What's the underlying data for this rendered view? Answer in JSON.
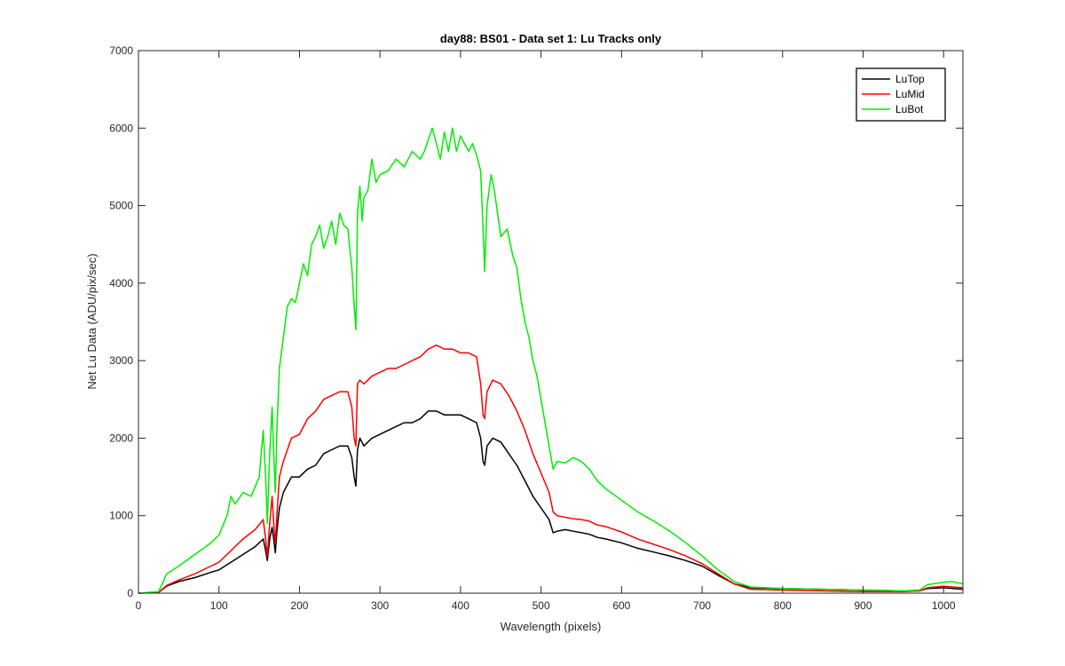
{
  "chart_data": {
    "type": "line",
    "title": "day88: BS01 - Data set 1: Lu Tracks only",
    "xlabel": "Wavelength (pixels)",
    "ylabel": "Net Lu Data (ADU/pix/sec)",
    "xlim": [
      0,
      1024
    ],
    "ylim": [
      0,
      7000
    ],
    "xticks": [
      0,
      100,
      200,
      300,
      400,
      500,
      600,
      700,
      800,
      900,
      1000
    ],
    "yticks": [
      0,
      1000,
      2000,
      3000,
      4000,
      5000,
      6000,
      7000
    ],
    "grid": false,
    "legend_position": "top-right",
    "series": [
      {
        "name": "LuTop",
        "color": "#000000",
        "points": [
          [
            0,
            0
          ],
          [
            25,
            10
          ],
          [
            35,
            90
          ],
          [
            50,
            150
          ],
          [
            70,
            200
          ],
          [
            90,
            270
          ],
          [
            100,
            300
          ],
          [
            115,
            400
          ],
          [
            130,
            500
          ],
          [
            145,
            600
          ],
          [
            155,
            700
          ],
          [
            158,
            550
          ],
          [
            160,
            420
          ],
          [
            163,
            700
          ],
          [
            166,
            850
          ],
          [
            168,
            700
          ],
          [
            170,
            520
          ],
          [
            172,
            800
          ],
          [
            175,
            1100
          ],
          [
            180,
            1300
          ],
          [
            190,
            1500
          ],
          [
            200,
            1500
          ],
          [
            210,
            1600
          ],
          [
            220,
            1650
          ],
          [
            230,
            1800
          ],
          [
            240,
            1850
          ],
          [
            250,
            1900
          ],
          [
            260,
            1900
          ],
          [
            265,
            1750
          ],
          [
            268,
            1500
          ],
          [
            270,
            1380
          ],
          [
            272,
            1850
          ],
          [
            275,
            2000
          ],
          [
            280,
            1900
          ],
          [
            290,
            2000
          ],
          [
            300,
            2050
          ],
          [
            310,
            2100
          ],
          [
            320,
            2150
          ],
          [
            330,
            2200
          ],
          [
            340,
            2200
          ],
          [
            350,
            2250
          ],
          [
            360,
            2350
          ],
          [
            370,
            2350
          ],
          [
            380,
            2300
          ],
          [
            390,
            2300
          ],
          [
            400,
            2300
          ],
          [
            410,
            2250
          ],
          [
            420,
            2200
          ],
          [
            425,
            2000
          ],
          [
            428,
            1700
          ],
          [
            430,
            1650
          ],
          [
            433,
            1900
          ],
          [
            440,
            2000
          ],
          [
            450,
            1950
          ],
          [
            460,
            1800
          ],
          [
            470,
            1650
          ],
          [
            480,
            1450
          ],
          [
            490,
            1250
          ],
          [
            500,
            1100
          ],
          [
            510,
            950
          ],
          [
            515,
            780
          ],
          [
            520,
            800
          ],
          [
            530,
            820
          ],
          [
            540,
            800
          ],
          [
            550,
            780
          ],
          [
            560,
            760
          ],
          [
            570,
            720
          ],
          [
            580,
            700
          ],
          [
            600,
            650
          ],
          [
            620,
            580
          ],
          [
            640,
            530
          ],
          [
            660,
            480
          ],
          [
            680,
            420
          ],
          [
            700,
            350
          ],
          [
            720,
            230
          ],
          [
            740,
            120
          ],
          [
            760,
            70
          ],
          [
            800,
            60
          ],
          [
            850,
            50
          ],
          [
            900,
            40
          ],
          [
            950,
            30
          ],
          [
            970,
            30
          ],
          [
            980,
            60
          ],
          [
            1000,
            70
          ],
          [
            1024,
            50
          ]
        ]
      },
      {
        "name": "LuMid",
        "color": "#ff0000",
        "points": [
          [
            0,
            0
          ],
          [
            25,
            10
          ],
          [
            35,
            100
          ],
          [
            50,
            170
          ],
          [
            70,
            250
          ],
          [
            90,
            350
          ],
          [
            100,
            400
          ],
          [
            115,
            550
          ],
          [
            130,
            700
          ],
          [
            145,
            820
          ],
          [
            155,
            950
          ],
          [
            158,
            700
          ],
          [
            160,
            480
          ],
          [
            163,
            900
          ],
          [
            166,
            1250
          ],
          [
            168,
            900
          ],
          [
            170,
            650
          ],
          [
            172,
            1000
          ],
          [
            175,
            1500
          ],
          [
            180,
            1700
          ],
          [
            190,
            2000
          ],
          [
            200,
            2050
          ],
          [
            210,
            2250
          ],
          [
            220,
            2350
          ],
          [
            230,
            2500
          ],
          [
            240,
            2550
          ],
          [
            250,
            2600
          ],
          [
            260,
            2600
          ],
          [
            265,
            2400
          ],
          [
            268,
            2000
          ],
          [
            270,
            1900
          ],
          [
            272,
            2700
          ],
          [
            275,
            2750
          ],
          [
            280,
            2700
          ],
          [
            290,
            2800
          ],
          [
            300,
            2850
          ],
          [
            310,
            2900
          ],
          [
            320,
            2900
          ],
          [
            330,
            2950
          ],
          [
            340,
            3000
          ],
          [
            350,
            3050
          ],
          [
            360,
            3150
          ],
          [
            370,
            3200
          ],
          [
            380,
            3150
          ],
          [
            390,
            3150
          ],
          [
            400,
            3100
          ],
          [
            410,
            3100
          ],
          [
            420,
            3050
          ],
          [
            425,
            2700
          ],
          [
            428,
            2300
          ],
          [
            430,
            2250
          ],
          [
            433,
            2600
          ],
          [
            440,
            2750
          ],
          [
            450,
            2700
          ],
          [
            460,
            2550
          ],
          [
            470,
            2350
          ],
          [
            480,
            2100
          ],
          [
            490,
            1800
          ],
          [
            500,
            1550
          ],
          [
            510,
            1300
          ],
          [
            515,
            1050
          ],
          [
            520,
            1000
          ],
          [
            530,
            980
          ],
          [
            540,
            960
          ],
          [
            550,
            950
          ],
          [
            560,
            930
          ],
          [
            570,
            880
          ],
          [
            580,
            860
          ],
          [
            600,
            790
          ],
          [
            620,
            700
          ],
          [
            640,
            630
          ],
          [
            660,
            560
          ],
          [
            680,
            480
          ],
          [
            700,
            380
          ],
          [
            720,
            250
          ],
          [
            740,
            120
          ],
          [
            760,
            50
          ],
          [
            800,
            40
          ],
          [
            850,
            30
          ],
          [
            900,
            20
          ],
          [
            950,
            20
          ],
          [
            970,
            30
          ],
          [
            980,
            70
          ],
          [
            1000,
            90
          ],
          [
            1024,
            70
          ]
        ]
      },
      {
        "name": "LuBot",
        "color": "#00ee00",
        "points": [
          [
            0,
            0
          ],
          [
            25,
            20
          ],
          [
            35,
            250
          ],
          [
            50,
            350
          ],
          [
            70,
            500
          ],
          [
            90,
            650
          ],
          [
            100,
            750
          ],
          [
            110,
            1000
          ],
          [
            115,
            1250
          ],
          [
            120,
            1150
          ],
          [
            130,
            1300
          ],
          [
            140,
            1250
          ],
          [
            150,
            1500
          ],
          [
            155,
            2100
          ],
          [
            158,
            1500
          ],
          [
            160,
            900
          ],
          [
            163,
            1800
          ],
          [
            166,
            2400
          ],
          [
            168,
            1800
          ],
          [
            170,
            1300
          ],
          [
            172,
            2100
          ],
          [
            175,
            2900
          ],
          [
            180,
            3300
          ],
          [
            185,
            3700
          ],
          [
            190,
            3800
          ],
          [
            195,
            3750
          ],
          [
            200,
            4000
          ],
          [
            205,
            4250
          ],
          [
            210,
            4100
          ],
          [
            215,
            4500
          ],
          [
            220,
            4600
          ],
          [
            225,
            4750
          ],
          [
            230,
            4450
          ],
          [
            235,
            4600
          ],
          [
            240,
            4800
          ],
          [
            245,
            4500
          ],
          [
            250,
            4900
          ],
          [
            255,
            4750
          ],
          [
            260,
            4700
          ],
          [
            265,
            4200
          ],
          [
            268,
            3700
          ],
          [
            270,
            3400
          ],
          [
            272,
            4900
          ],
          [
            275,
            5250
          ],
          [
            278,
            4800
          ],
          [
            280,
            5100
          ],
          [
            285,
            5200
          ],
          [
            290,
            5600
          ],
          [
            295,
            5300
          ],
          [
            300,
            5400
          ],
          [
            310,
            5450
          ],
          [
            320,
            5600
          ],
          [
            330,
            5500
          ],
          [
            340,
            5700
          ],
          [
            350,
            5600
          ],
          [
            355,
            5700
          ],
          [
            360,
            5850
          ],
          [
            365,
            6000
          ],
          [
            370,
            5800
          ],
          [
            375,
            5600
          ],
          [
            380,
            5950
          ],
          [
            385,
            5700
          ],
          [
            390,
            6000
          ],
          [
            395,
            5700
          ],
          [
            400,
            5900
          ],
          [
            410,
            5700
          ],
          [
            415,
            5800
          ],
          [
            420,
            5650
          ],
          [
            425,
            5450
          ],
          [
            428,
            4700
          ],
          [
            430,
            4150
          ],
          [
            433,
            5000
          ],
          [
            438,
            5400
          ],
          [
            442,
            5200
          ],
          [
            450,
            4600
          ],
          [
            458,
            4700
          ],
          [
            465,
            4350
          ],
          [
            470,
            4200
          ],
          [
            475,
            3800
          ],
          [
            480,
            3500
          ],
          [
            485,
            3300
          ],
          [
            490,
            3000
          ],
          [
            495,
            2800
          ],
          [
            500,
            2500
          ],
          [
            505,
            2200
          ],
          [
            510,
            1900
          ],
          [
            515,
            1600
          ],
          [
            520,
            1700
          ],
          [
            530,
            1680
          ],
          [
            540,
            1750
          ],
          [
            550,
            1700
          ],
          [
            560,
            1600
          ],
          [
            570,
            1450
          ],
          [
            580,
            1350
          ],
          [
            600,
            1200
          ],
          [
            620,
            1050
          ],
          [
            640,
            930
          ],
          [
            660,
            800
          ],
          [
            680,
            650
          ],
          [
            700,
            480
          ],
          [
            720,
            300
          ],
          [
            740,
            150
          ],
          [
            760,
            80
          ],
          [
            800,
            60
          ],
          [
            850,
            50
          ],
          [
            900,
            40
          ],
          [
            950,
            30
          ],
          [
            970,
            40
          ],
          [
            980,
            110
          ],
          [
            1000,
            140
          ],
          [
            1010,
            150
          ],
          [
            1024,
            120
          ]
        ]
      }
    ]
  }
}
